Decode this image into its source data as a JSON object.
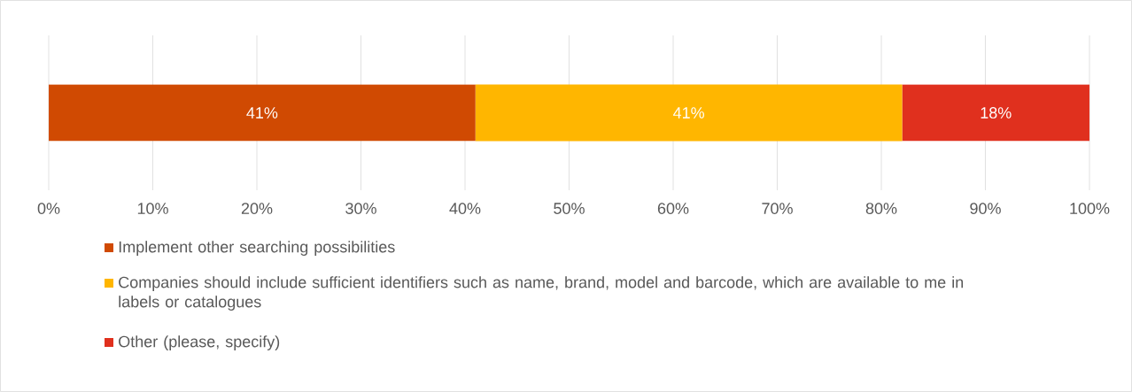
{
  "chart_data": {
    "type": "bar",
    "orientation": "horizontal",
    "stacked": true,
    "categories": [
      null
    ],
    "series": [
      {
        "name": "Implement other searching possibilities",
        "color": "#d04a02",
        "values": [
          41
        ],
        "value_labels": [
          "41%"
        ]
      },
      {
        "name": "Companies should include sufficient identifiers such as name, brand, model and barcode, which are available to me in labels or catalogues",
        "color": "#ffb600",
        "values": [
          41
        ],
        "value_labels": [
          "41%"
        ]
      },
      {
        "name": "Other (please, specify)",
        "color": "#e0301e",
        "values": [
          18
        ],
        "value_labels": [
          "18%"
        ]
      }
    ],
    "xlim": [
      0,
      100
    ],
    "xticks": [
      {
        "value": 0,
        "label": "0%"
      },
      {
        "value": 10,
        "label": "10%"
      },
      {
        "value": 20,
        "label": "20%"
      },
      {
        "value": 30,
        "label": "30%"
      },
      {
        "value": 40,
        "label": "40%"
      },
      {
        "value": 50,
        "label": "50%"
      },
      {
        "value": 60,
        "label": "60%"
      },
      {
        "value": 70,
        "label": "70%"
      },
      {
        "value": 80,
        "label": "80%"
      },
      {
        "value": 90,
        "label": "90%"
      },
      {
        "value": 100,
        "label": "100%"
      }
    ],
    "grid": "x",
    "legend": "bottom"
  }
}
